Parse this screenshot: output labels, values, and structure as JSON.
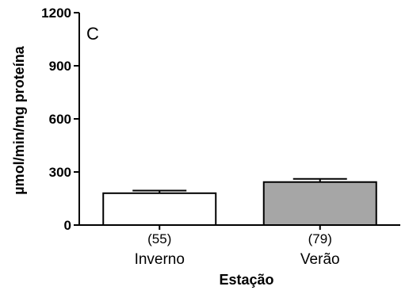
{
  "chart_data": {
    "type": "bar",
    "panel_label": "C",
    "categories": [
      "Inverno",
      "Verão"
    ],
    "sample_sizes": [
      "(55)",
      "(79)"
    ],
    "values": [
      180,
      243
    ],
    "errors": [
      15,
      18
    ],
    "bar_colors": [
      "#ffffff",
      "#a6a6a6"
    ],
    "ylabel": "µmol/min/mg proteína",
    "xlabel": "Estação",
    "ylim": [
      0,
      1200
    ],
    "yticks": [
      0,
      300,
      600,
      900,
      1200
    ],
    "grid": false
  }
}
